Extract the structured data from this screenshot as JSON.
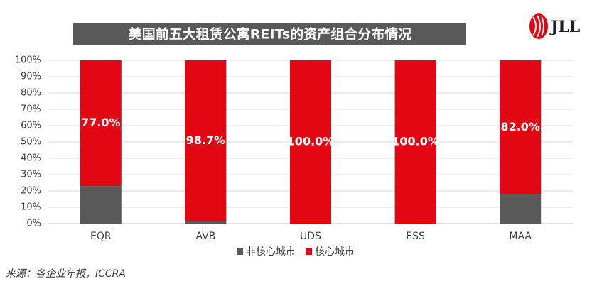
{
  "chart_data": {
    "type": "stacked_bar",
    "title": "美国前五大租赁公寓REITs的资产组合分布情况",
    "logo": "JLL",
    "source": "来源：各企业年报，ICCRA",
    "categories": [
      "EQR",
      "AVB",
      "UDS",
      "ESS",
      "MAA"
    ],
    "series": [
      {
        "name": "非核心城市",
        "color": "#595959",
        "values": [
          23,
          1.3,
          0,
          0,
          18
        ]
      },
      {
        "name": "核心城市",
        "color": "#e30613",
        "values": [
          77,
          98.7,
          100,
          100,
          82
        ],
        "value_labels": [
          "77.0%",
          "98.7%",
          "100.0%",
          "100.0%",
          "82.0%"
        ]
      }
    ],
    "ylim": [
      0,
      100
    ],
    "yticks": [
      {
        "value": 0,
        "label": "0%"
      },
      {
        "value": 10,
        "label": "10%"
      },
      {
        "value": 20,
        "label": "20%"
      },
      {
        "value": 30,
        "label": "30%"
      },
      {
        "value": 40,
        "label": "40%"
      },
      {
        "value": 50,
        "label": "50%"
      },
      {
        "value": 60,
        "label": "60%"
      },
      {
        "value": 70,
        "label": "70%"
      },
      {
        "value": 80,
        "label": "80%"
      },
      {
        "value": 90,
        "label": "90%"
      },
      {
        "value": 100,
        "label": "100%"
      }
    ],
    "grid": true,
    "legend": "bottom"
  }
}
